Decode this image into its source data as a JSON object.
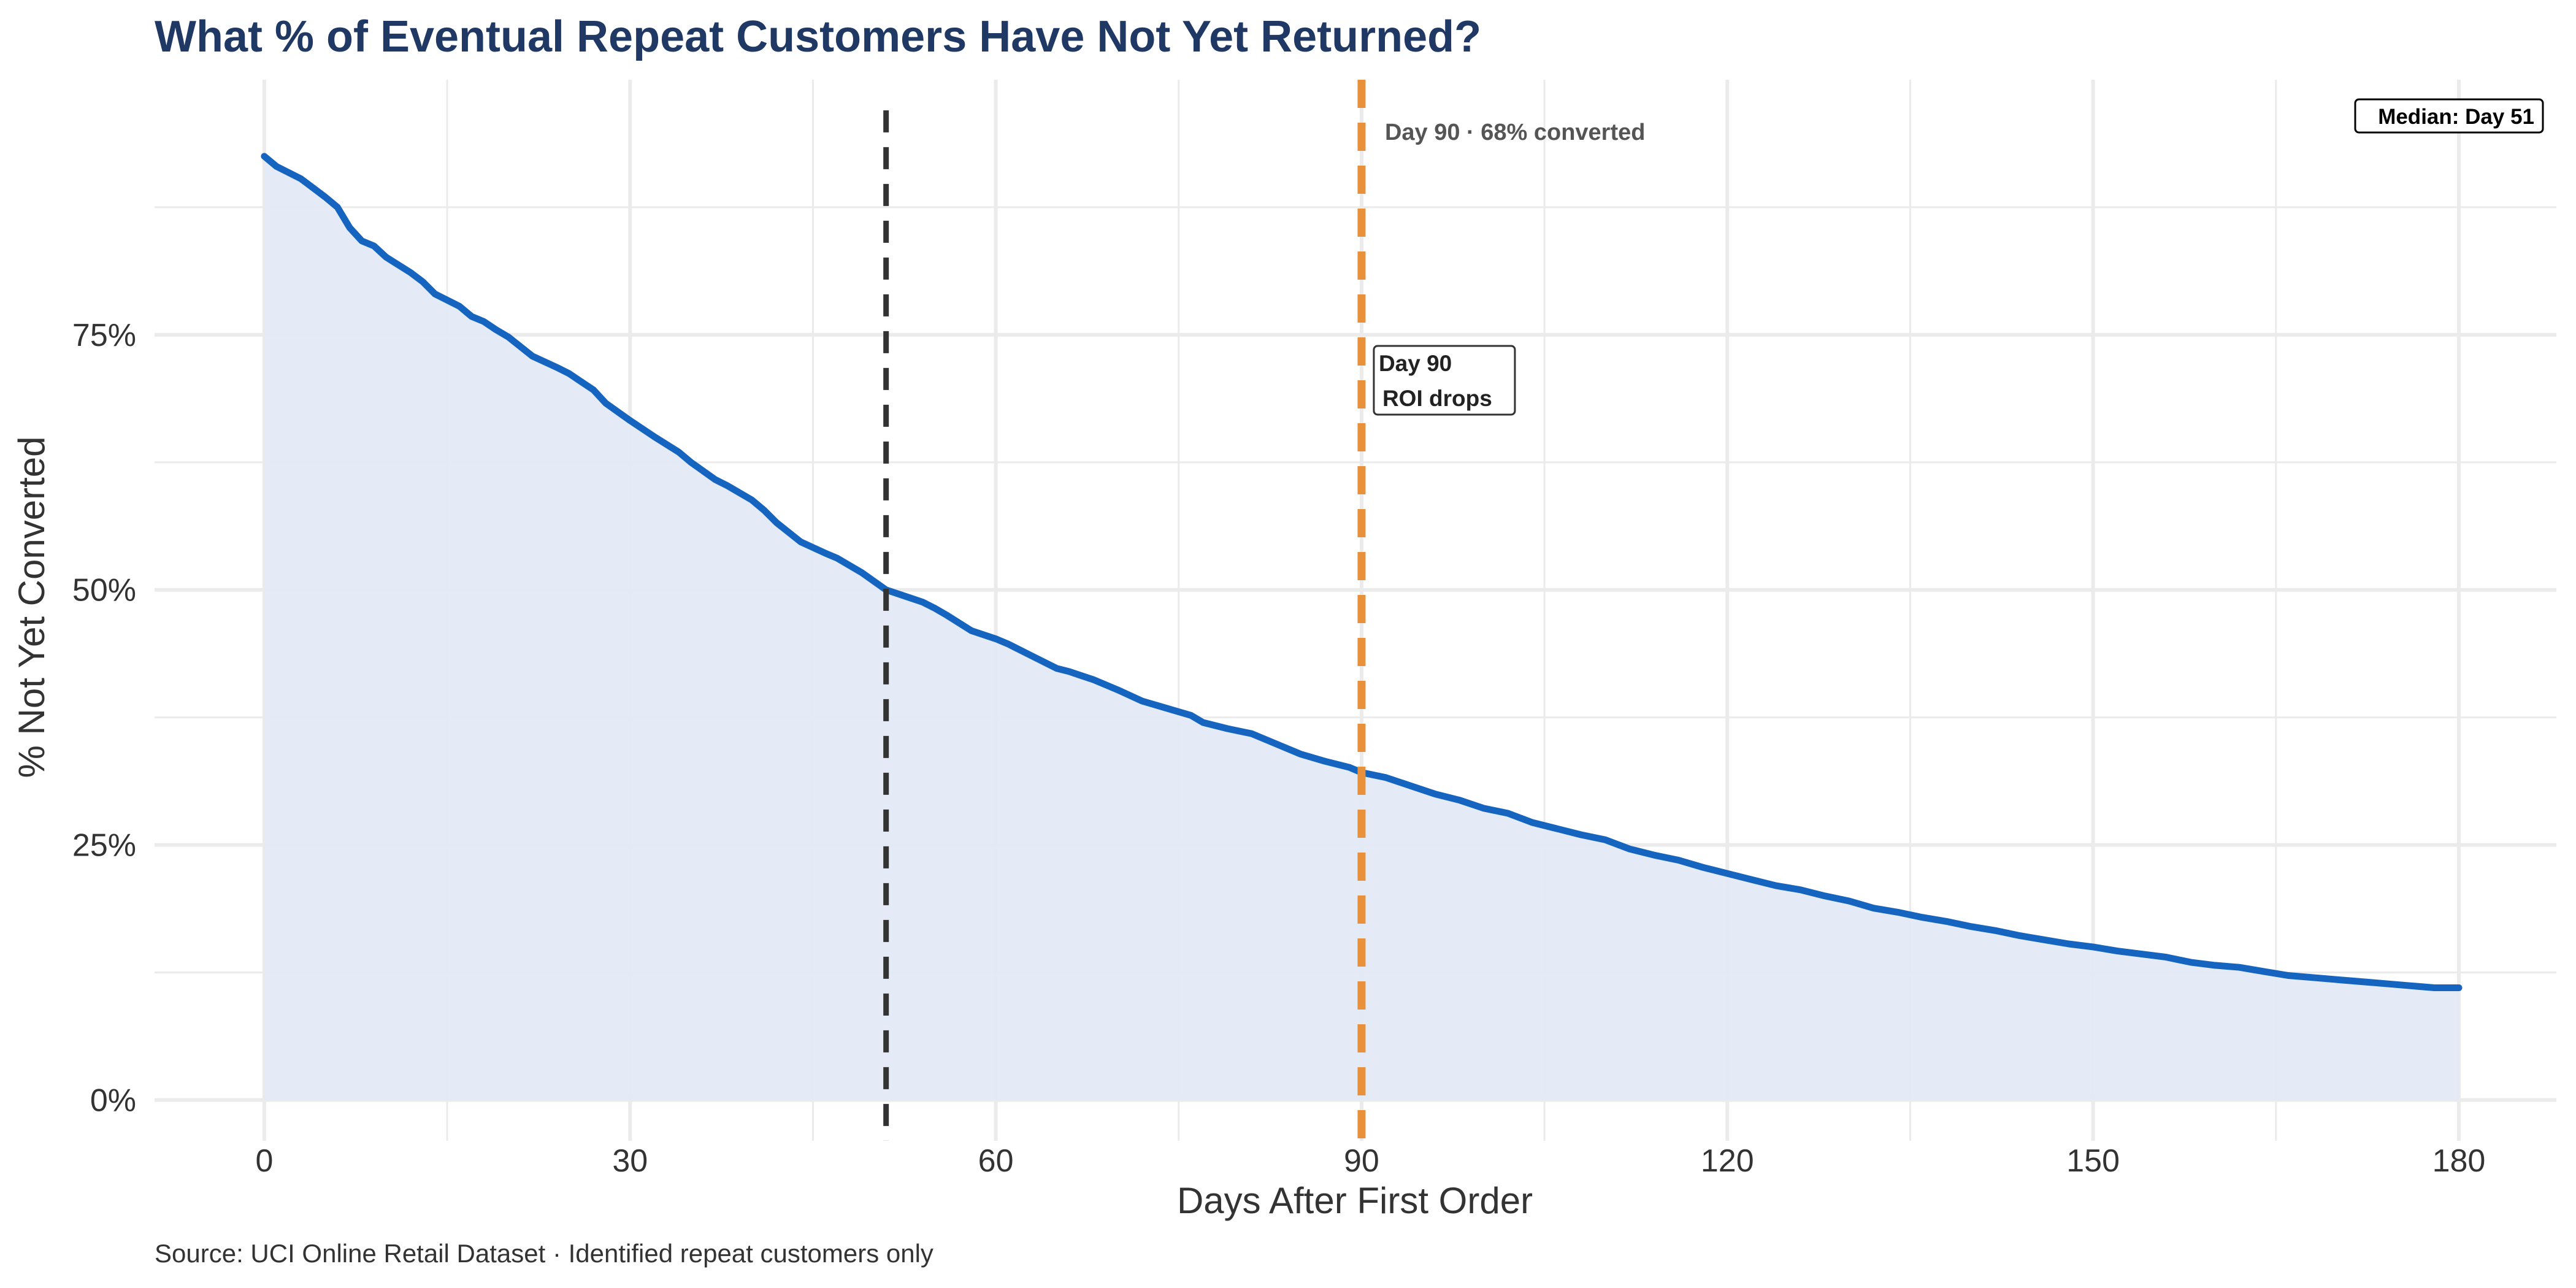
{
  "chart_data": {
    "type": "area",
    "title": "What % of Eventual Repeat Customers Have Not Yet Returned?",
    "xlabel": "Days After First Order",
    "ylabel": "% Not Yet Converted",
    "caption": "Source: UCI Online Retail Dataset · Identified repeat customers only",
    "xlim": [
      -9,
      188
    ],
    "ylim": [
      -4,
      100
    ],
    "x_ticks": [
      0,
      30,
      60,
      90,
      120,
      150,
      180
    ],
    "x_tick_labels": [
      "0",
      "30",
      "60",
      "90",
      "120",
      "150",
      "180"
    ],
    "y_ticks": [
      0,
      25,
      50,
      75
    ],
    "y_tick_labels": [
      "0%",
      "25%",
      "50%",
      "75%"
    ],
    "grid": true,
    "series": [
      {
        "x": [
          0,
          1,
          3,
          5,
          6,
          7,
          8,
          9,
          10,
          12,
          13,
          14,
          16,
          17,
          18,
          19,
          20,
          22,
          24,
          25,
          26,
          27,
          28,
          30,
          32,
          34,
          35,
          37,
          38,
          40,
          41,
          42,
          44,
          46,
          47,
          49,
          51,
          53,
          54,
          55,
          56,
          58,
          60,
          61,
          63,
          65,
          66,
          67,
          68,
          70,
          72,
          74,
          76,
          77,
          79,
          81,
          83,
          85,
          87,
          89,
          90,
          92,
          94,
          96,
          98,
          100,
          102,
          104,
          106,
          108,
          110,
          112,
          114,
          116,
          118,
          120,
          122,
          124,
          126,
          128,
          130,
          132,
          134,
          136,
          138,
          140,
          142,
          144,
          146,
          148,
          150,
          152,
          154,
          156,
          158,
          160,
          162,
          164,
          166,
          168,
          170,
          172,
          174,
          176,
          178,
          180
        ],
        "values": [
          92.5,
          91.5,
          90.3,
          88.5,
          87.5,
          85.5,
          84.2,
          83.7,
          82.6,
          81.1,
          80.2,
          79.0,
          77.8,
          76.8,
          76.3,
          75.5,
          74.8,
          72.9,
          71.8,
          71.2,
          70.4,
          69.6,
          68.3,
          66.6,
          65.0,
          63.5,
          62.5,
          60.8,
          60.2,
          58.8,
          57.8,
          56.6,
          54.7,
          53.6,
          53.1,
          51.7,
          50.0,
          49.2,
          48.8,
          48.2,
          47.5,
          46.0,
          45.2,
          44.7,
          43.5,
          42.3,
          42.0,
          41.6,
          41.2,
          40.2,
          39.1,
          38.4,
          37.7,
          37.0,
          36.4,
          35.9,
          34.9,
          33.9,
          33.2,
          32.6,
          32.1,
          31.6,
          30.8,
          30.0,
          29.4,
          28.6,
          28.1,
          27.2,
          26.6,
          26.0,
          25.5,
          24.6,
          24.0,
          23.5,
          22.8,
          22.2,
          21.6,
          21.0,
          20.6,
          20.0,
          19.5,
          18.8,
          18.4,
          17.9,
          17.5,
          17.0,
          16.6,
          16.1,
          15.7,
          15.3,
          15.0,
          14.6,
          14.3,
          14.0,
          13.5,
          13.2,
          13.0,
          12.6,
          12.2,
          12.0,
          11.8,
          11.6,
          11.4,
          11.2,
          11.0,
          11.0
        ],
        "line_color": "#1565c0",
        "fill_color": "#e3eaf6"
      }
    ],
    "reference_lines": [
      {
        "x": 51,
        "color": "#333333",
        "style": "dashed"
      },
      {
        "x": 90,
        "color": "#e8913a",
        "style": "dashed"
      }
    ],
    "annotations": {
      "day90_text": "Day 90 · 68% converted",
      "day90_box_line1": "Day 90",
      "day90_box_line2": "ROI drops",
      "median_label": "Median: Day 51"
    },
    "colors": {
      "title": "#1f3864",
      "grid": "#ebebeb"
    }
  }
}
